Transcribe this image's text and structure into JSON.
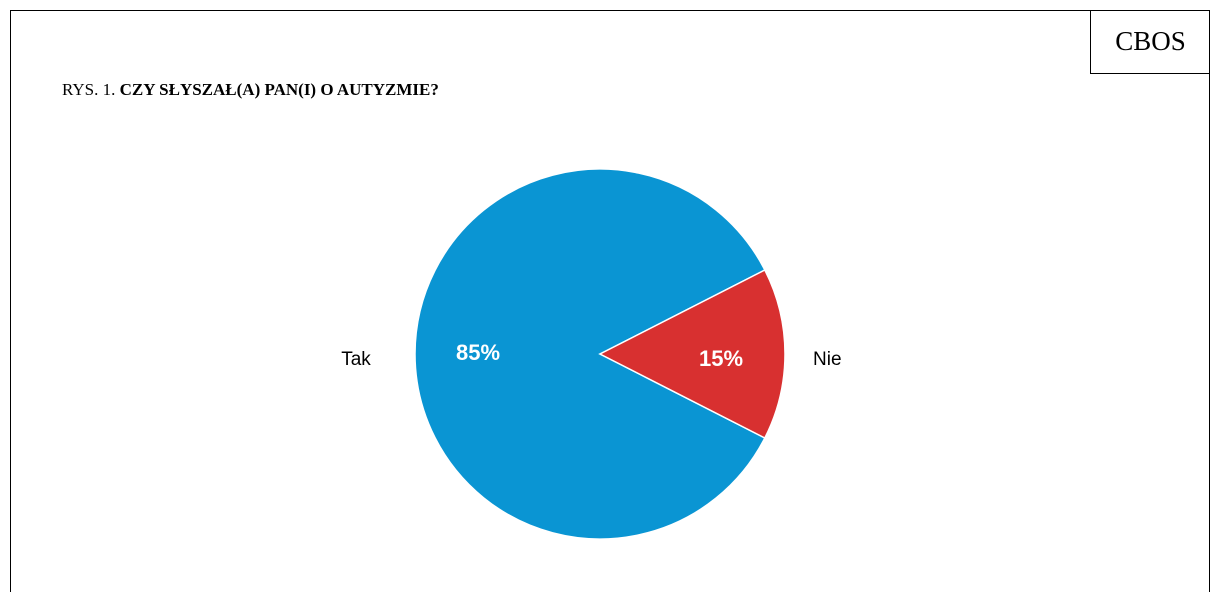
{
  "badge": {
    "text": "CBOS"
  },
  "title": {
    "prefix": "RYS. 1. ",
    "question": "CZY SŁYSZAŁ(A) PAN(I) O AUTYZMIE?"
  },
  "chart_data": {
    "type": "pie",
    "title": "RYS. 1. CZY SŁYSZAŁ(A) PAN(I) O AUTYZMIE?",
    "categories": [
      "Tak",
      "Nie"
    ],
    "values": [
      85,
      15
    ],
    "value_labels": [
      "85%",
      "15%"
    ],
    "colors": [
      "#0A95D3",
      "#D83030"
    ],
    "unit": "%"
  }
}
